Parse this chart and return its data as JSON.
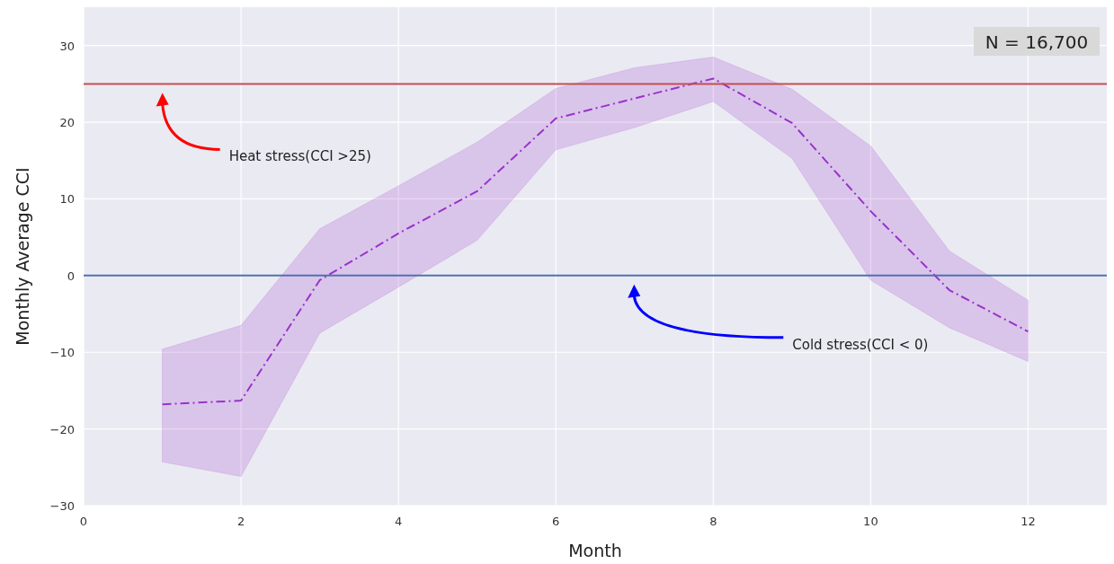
{
  "chart_data": {
    "type": "line",
    "xlabel": "Month",
    "ylabel": "Monthly Average CCI",
    "x": [
      1,
      2,
      3,
      4,
      5,
      6,
      7,
      8,
      9,
      10,
      11,
      12
    ],
    "series": [
      {
        "color": "#9932cc",
        "values": [
          -16.8,
          -16.3,
          -0.6,
          5.5,
          11.0,
          20.5,
          23.1,
          25.7,
          19.9,
          8.4,
          -1.9,
          -7.3
        ],
        "lower": [
          -24.3,
          -26.2,
          -7.5,
          -1.5,
          4.6,
          16.4,
          19.3,
          22.7,
          15.3,
          -0.6,
          -6.8,
          -11.2
        ],
        "upper": [
          -9.6,
          -6.5,
          6.1,
          11.7,
          17.4,
          24.4,
          27.1,
          28.5,
          24.3,
          16.9,
          3.2,
          -3.2
        ]
      }
    ],
    "xlim": [
      0,
      13
    ],
    "xticks": [
      0,
      2,
      4,
      6,
      8,
      10,
      12
    ],
    "ylim": [
      -30,
      35
    ],
    "yticks": [
      -30,
      -20,
      -10,
      0,
      10,
      20,
      30
    ],
    "grid": true,
    "line_style": "dashed",
    "marker": "none",
    "ref_lines": [
      {
        "axis": "y",
        "value": 25,
        "color": "#c44e52"
      },
      {
        "axis": "y",
        "value": 0,
        "color": "#4c72b0"
      }
    ],
    "annotations": [
      "Heat stress(CCI >25)",
      "Cold stress(CCI < 0)",
      "N = 16,700"
    ]
  }
}
